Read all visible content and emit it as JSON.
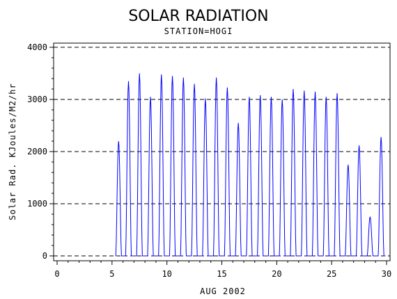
{
  "chart_data": {
    "type": "line",
    "title": "SOLAR RADIATION",
    "subtitle": "STATION=HOGI",
    "xlabel": "AUG 2002",
    "ylabel": "Solar Rad. KJoules/M2/hr",
    "xlim": [
      0,
      30
    ],
    "ylim": [
      0,
      4000
    ],
    "x_ticks": [
      0,
      5,
      10,
      15,
      20,
      25,
      30
    ],
    "y_ticks": [
      0,
      1000,
      2000,
      3000,
      4000
    ],
    "y_tick_labels": [
      "0",
      "1000",
      "2000",
      "3000",
      "4000"
    ],
    "grid": "horizontal-dashed",
    "line_color": "#0000ff",
    "daily_peaks": [
      {
        "day": 5.6,
        "peak": 2200
      },
      {
        "day": 6.5,
        "peak": 3350
      },
      {
        "day": 7.5,
        "peak": 3500
      },
      {
        "day": 8.5,
        "peak": 3050
      },
      {
        "day": 9.5,
        "peak": 3480
      },
      {
        "day": 10.5,
        "peak": 3450
      },
      {
        "day": 11.5,
        "peak": 3420
      },
      {
        "day": 12.5,
        "peak": 3300
      },
      {
        "day": 13.5,
        "peak": 3020
      },
      {
        "day": 14.5,
        "peak": 3420
      },
      {
        "day": 15.5,
        "peak": 3230
      },
      {
        "day": 16.5,
        "peak": 2550
      },
      {
        "day": 17.5,
        "peak": 3050
      },
      {
        "day": 18.5,
        "peak": 3080
      },
      {
        "day": 19.5,
        "peak": 3050
      },
      {
        "day": 20.5,
        "peak": 3000
      },
      {
        "day": 21.5,
        "peak": 3200
      },
      {
        "day": 22.5,
        "peak": 3170
      },
      {
        "day": 23.5,
        "peak": 3150
      },
      {
        "day": 24.5,
        "peak": 3050
      },
      {
        "day": 25.5,
        "peak": 3120
      },
      {
        "day": 26.5,
        "peak": 1750
      },
      {
        "day": 27.5,
        "peak": 2120
      },
      {
        "day": 28.5,
        "peak": 750
      },
      {
        "day": 29.5,
        "peak": 2280
      }
    ]
  }
}
